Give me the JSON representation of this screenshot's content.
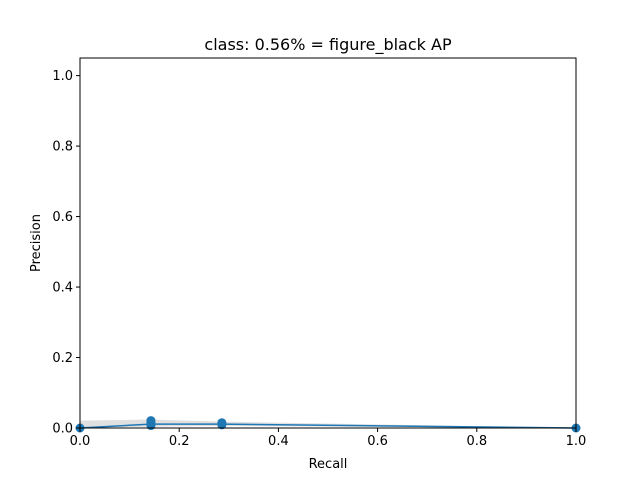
{
  "chart_data": {
    "type": "line",
    "title": "class: 0.56% = figure_black AP",
    "xlabel": "Recall",
    "ylabel": "Precision",
    "xlim": [
      0.0,
      1.0
    ],
    "ylim": [
      0.0,
      1.05
    ],
    "xticks": [
      "0.0",
      "0.2",
      "0.4",
      "0.6",
      "0.8",
      "1.0"
    ],
    "yticks": [
      "0.0",
      "0.2",
      "0.4",
      "0.6",
      "0.8",
      "1.0"
    ],
    "grid": false,
    "legend": "none",
    "series": [
      {
        "color": "#1f77b4",
        "x": [
          0.0,
          0.143,
          0.286,
          1.0
        ],
        "y": [
          0.0,
          0.011,
          0.011,
          0.0
        ]
      }
    ],
    "points": {
      "color": "#1f77b4",
      "x": [
        0.0,
        0.143,
        0.143,
        0.143,
        0.143,
        0.286,
        0.286,
        0.286,
        1.0
      ],
      "y": [
        0.0,
        0.007,
        0.011,
        0.016,
        0.021,
        0.009,
        0.012,
        0.015,
        0.0
      ]
    },
    "band": {
      "color": "#d3d3d3",
      "x": [
        0.0,
        0.143,
        0.286,
        1.0
      ],
      "lower": [
        0.0,
        0.004,
        0.006,
        0.0
      ],
      "upper": [
        0.021,
        0.024,
        0.018,
        0.0
      ]
    }
  }
}
